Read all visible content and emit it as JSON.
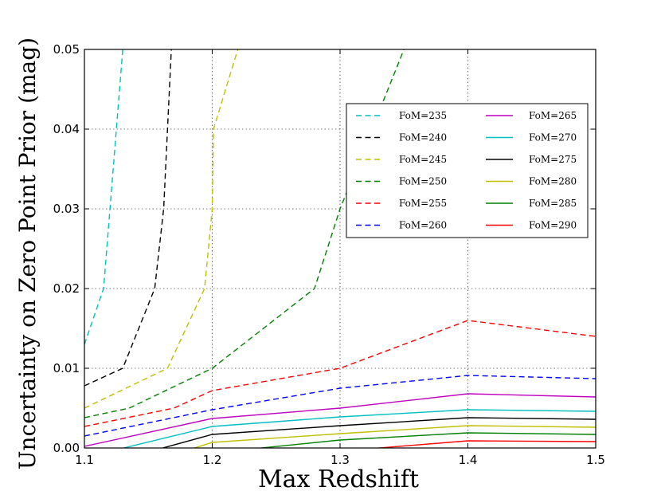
{
  "chart_data": {
    "type": "line",
    "xlabel": "Max Redshift",
    "ylabel": "Uncertainty on Zero Point Prior (mag)",
    "xlim": [
      1.1,
      1.5
    ],
    "ylim": [
      0.0,
      0.05
    ],
    "xticks": [
      1.1,
      1.2,
      1.3,
      1.4,
      1.5
    ],
    "xtick_labels": [
      "1.1",
      "1.2",
      "1.3",
      "1.4",
      "1.5"
    ],
    "yticks": [
      0.0,
      0.01,
      0.02,
      0.03,
      0.04,
      0.05
    ],
    "ytick_labels": [
      "0.00",
      "0.01",
      "0.02",
      "0.03",
      "0.04",
      "0.05"
    ],
    "grid": true,
    "legend_position": "upper-right",
    "series": [
      {
        "name": "FoM=235",
        "color": "#00bfbf",
        "dash": true,
        "x": [
          1.1,
          1.115,
          1.12,
          1.13
        ],
        "y": [
          0.013,
          0.02,
          0.03,
          0.05
        ]
      },
      {
        "name": "FoM=240",
        "color": "#000000",
        "dash": true,
        "x": [
          1.1,
          1.13,
          1.155,
          1.162,
          1.168
        ],
        "y": [
          0.0078,
          0.01,
          0.02,
          0.03,
          0.05
        ]
      },
      {
        "name": "FoM=245",
        "color": "#bfbf00",
        "dash": true,
        "x": [
          1.1,
          1.165,
          1.194,
          1.2,
          1.201,
          1.22
        ],
        "y": [
          0.005,
          0.01,
          0.02,
          0.03,
          0.04,
          0.05
        ]
      },
      {
        "name": "FoM=250",
        "color": "#008000",
        "dash": true,
        "x": [
          1.1,
          1.135,
          1.2,
          1.28,
          1.3,
          1.35
        ],
        "y": [
          0.0038,
          0.005,
          0.01,
          0.02,
          0.03,
          0.05
        ]
      },
      {
        "name": "FoM=255",
        "color": "#ff0000",
        "dash": true,
        "x": [
          1.1,
          1.17,
          1.2,
          1.3,
          1.4,
          1.5
        ],
        "y": [
          0.0027,
          0.005,
          0.0072,
          0.01,
          0.016,
          0.014
        ]
      },
      {
        "name": "FoM=260",
        "color": "#0000ff",
        "dash": true,
        "x": [
          1.1,
          1.2,
          1.3,
          1.4,
          1.5
        ],
        "y": [
          0.0015,
          0.0048,
          0.0075,
          0.0091,
          0.0087
        ]
      },
      {
        "name": "FoM=265",
        "color": "#bf00bf",
        "dash": false,
        "x": [
          1.1,
          1.2,
          1.3,
          1.4,
          1.5
        ],
        "y": [
          0.0002,
          0.0037,
          0.005,
          0.0068,
          0.0064
        ]
      },
      {
        "name": "FoM=270",
        "color": "#00bfbf",
        "dash": false,
        "x": [
          1.1,
          1.2,
          1.3,
          1.4,
          1.5
        ],
        "y": [
          -0.0012,
          0.0027,
          0.0039,
          0.0048,
          0.0046
        ]
      },
      {
        "name": "FoM=275",
        "color": "#000000",
        "dash": false,
        "x": [
          1.15,
          1.2,
          1.3,
          1.4,
          1.5
        ],
        "y": [
          -0.0005,
          0.0017,
          0.0028,
          0.0038,
          0.0036
        ]
      },
      {
        "name": "FoM=280",
        "color": "#bfbf00",
        "dash": false,
        "x": [
          1.18,
          1.2,
          1.3,
          1.4,
          1.5
        ],
        "y": [
          -0.0003,
          0.0007,
          0.0018,
          0.0028,
          0.0026
        ]
      },
      {
        "name": "FoM=285",
        "color": "#008000",
        "dash": false,
        "x": [
          1.22,
          1.3,
          1.4,
          1.5
        ],
        "y": [
          -0.0003,
          0.001,
          0.0019,
          0.0017
        ]
      },
      {
        "name": "FoM=290",
        "color": "#ff0000",
        "dash": false,
        "x": [
          1.3,
          1.4,
          1.5
        ],
        "y": [
          -0.0004,
          0.0009,
          0.0008
        ]
      }
    ]
  }
}
